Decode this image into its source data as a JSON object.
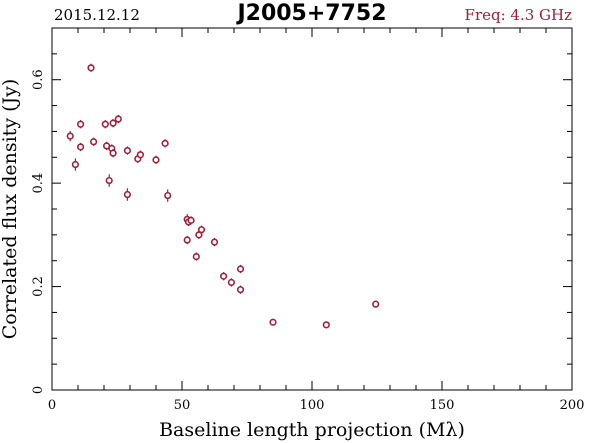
{
  "header": {
    "date": "2015.12.12",
    "source": "J2005+7752",
    "freq": "Freq: 4.3 GHz"
  },
  "chart_data": {
    "type": "scatter",
    "title": "J2005+7752",
    "xlabel": "Baseline length projection (Mλ)",
    "ylabel": "Correlated flux density (Jy)",
    "xlim": [
      0,
      200
    ],
    "ylim": [
      0,
      0.7
    ],
    "xticks": [
      0,
      50,
      100,
      150,
      200
    ],
    "yticks": [
      0,
      0.2,
      0.4,
      0.6
    ],
    "xtick_labels": [
      "0",
      "50",
      "100",
      "150",
      "200"
    ],
    "ytick_labels": [
      "0",
      "0.2",
      "0.4",
      "0.6"
    ],
    "grid": false,
    "colors": {
      "points": "#a0203a",
      "axes": "#000000"
    },
    "points": [
      {
        "x": 7.0,
        "y": 0.491,
        "err": 0.01
      },
      {
        "x": 9.0,
        "y": 0.436,
        "err": 0.012
      },
      {
        "x": 11.0,
        "y": 0.514,
        "err": 0.008
      },
      {
        "x": 11.0,
        "y": 0.47,
        "err": 0.008
      },
      {
        "x": 15.0,
        "y": 0.623,
        "err": 0.008
      },
      {
        "x": 16.0,
        "y": 0.48,
        "err": 0.008
      },
      {
        "x": 20.5,
        "y": 0.514,
        "err": 0.008
      },
      {
        "x": 21.0,
        "y": 0.472,
        "err": 0.008
      },
      {
        "x": 22.0,
        "y": 0.405,
        "err": 0.012
      },
      {
        "x": 23.0,
        "y": 0.467,
        "err": 0.008
      },
      {
        "x": 23.5,
        "y": 0.458,
        "err": 0.008
      },
      {
        "x": 23.5,
        "y": 0.516,
        "err": 0.008
      },
      {
        "x": 25.5,
        "y": 0.524,
        "err": 0.008
      },
      {
        "x": 29.0,
        "y": 0.463,
        "err": 0.008
      },
      {
        "x": 29.0,
        "y": 0.378,
        "err": 0.012
      },
      {
        "x": 33.0,
        "y": 0.447,
        "err": 0.008
      },
      {
        "x": 34.0,
        "y": 0.455,
        "err": 0.008
      },
      {
        "x": 40.0,
        "y": 0.445,
        "err": 0.008
      },
      {
        "x": 43.5,
        "y": 0.477,
        "err": 0.008
      },
      {
        "x": 44.5,
        "y": 0.376,
        "err": 0.012
      },
      {
        "x": 52.0,
        "y": 0.33,
        "err": 0.01
      },
      {
        "x": 52.5,
        "y": 0.325,
        "err": 0.008
      },
      {
        "x": 53.5,
        "y": 0.328,
        "err": 0.008
      },
      {
        "x": 52.0,
        "y": 0.29,
        "err": 0.008
      },
      {
        "x": 56.5,
        "y": 0.3,
        "err": 0.008
      },
      {
        "x": 57.5,
        "y": 0.31,
        "err": 0.008
      },
      {
        "x": 55.5,
        "y": 0.258,
        "err": 0.008
      },
      {
        "x": 62.5,
        "y": 0.286,
        "err": 0.008
      },
      {
        "x": 66.0,
        "y": 0.22,
        "err": 0.008
      },
      {
        "x": 69.0,
        "y": 0.208,
        "err": 0.008
      },
      {
        "x": 72.5,
        "y": 0.234,
        "err": 0.008
      },
      {
        "x": 72.5,
        "y": 0.194,
        "err": 0.008
      },
      {
        "x": 85.0,
        "y": 0.131,
        "err": 0.006
      },
      {
        "x": 105.5,
        "y": 0.126,
        "err": 0.006
      },
      {
        "x": 124.5,
        "y": 0.166,
        "err": 0.006
      }
    ]
  }
}
